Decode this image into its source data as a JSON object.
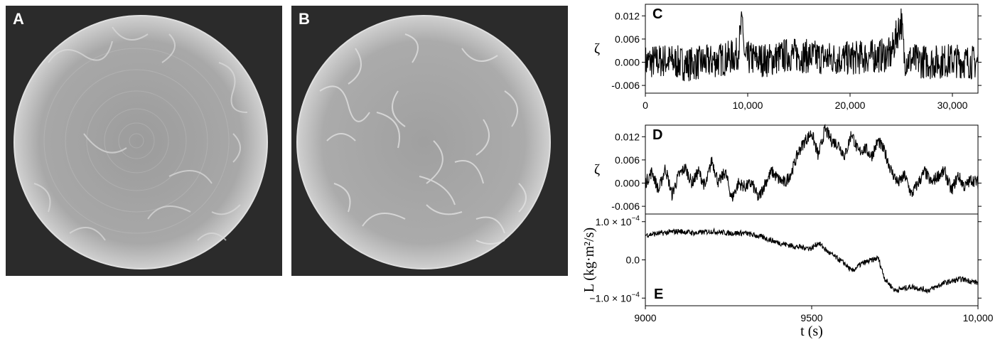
{
  "images": {
    "A": {
      "label": "A"
    },
    "B": {
      "label": "B"
    }
  },
  "chart_data": [
    {
      "panel": "C",
      "type": "line",
      "ylabel": "ζ",
      "xlabel": "",
      "xlim": [
        0,
        32500
      ],
      "ylim": [
        -0.008,
        0.015
      ],
      "xticks": [
        0,
        10000,
        20000,
        30000
      ],
      "xtick_labels": [
        "0",
        "10,000",
        "20,000",
        "30,000"
      ],
      "yticks": [
        -0.006,
        0.0,
        0.006,
        0.012
      ],
      "ytick_labels": [
        "-0.006",
        "0.000",
        "0.006",
        "0.012"
      ],
      "series": [
        {
          "x": [
            0,
            2000,
            4000,
            6000,
            8000,
            9000,
            9500,
            9700,
            10000,
            12000,
            14000,
            16000,
            18000,
            20000,
            22000,
            24000,
            25000,
            25300,
            26000,
            28000,
            30000,
            32000
          ],
          "y": [
            0.0,
            0.0005,
            -0.0005,
            0.0,
            0.001,
            0.002,
            0.011,
            0.0,
            0.001,
            0.0005,
            0.002,
            0.0015,
            0.001,
            0.001,
            0.0015,
            0.002,
            0.011,
            0.001,
            0.0005,
            0.0,
            0.0005,
            0.0
          ],
          "amplitude": 0.0045
        }
      ]
    },
    {
      "panel": "D",
      "type": "line",
      "ylabel": "ζ",
      "xlabel": "",
      "xlim": [
        9000,
        10000
      ],
      "ylim": [
        -0.008,
        0.015
      ],
      "yticks": [
        -0.006,
        0.0,
        0.006,
        0.012
      ],
      "ytick_labels": [
        "-0.006",
        "0.000",
        "0.006",
        "0.012"
      ],
      "series": [
        {
          "x": [
            9000,
            9020,
            9040,
            9060,
            9080,
            9100,
            9120,
            9140,
            9160,
            9180,
            9200,
            9220,
            9240,
            9260,
            9280,
            9300,
            9320,
            9340,
            9360,
            9380,
            9400,
            9420,
            9440,
            9460,
            9480,
            9500,
            9520,
            9540,
            9560,
            9580,
            9600,
            9620,
            9640,
            9660,
            9680,
            9700,
            9720,
            9740,
            9760,
            9780,
            9800,
            9820,
            9840,
            9860,
            9880,
            9900,
            9920,
            9940,
            9960,
            9980,
            10000
          ],
          "y": [
            0.0,
            0.003,
            -0.002,
            0.004,
            -0.003,
            0.002,
            0.004,
            0.0,
            0.003,
            -0.001,
            0.006,
            0.0,
            0.003,
            -0.004,
            0.0,
            -0.001,
            0.0,
            -0.004,
            0.0,
            0.003,
            0.001,
            0.0,
            0.003,
            0.008,
            0.011,
            0.013,
            0.007,
            0.014,
            0.011,
            0.01,
            0.007,
            0.013,
            0.008,
            0.009,
            0.007,
            0.011,
            0.008,
            0.003,
            0.0,
            0.002,
            -0.003,
            0.0,
            0.003,
            0.0,
            0.002,
            0.003,
            -0.002,
            0.002,
            -0.001,
            0.001,
            0.0
          ],
          "amplitude": 0.0018
        }
      ]
    },
    {
      "panel": "E",
      "type": "line",
      "ylabel": "L (kg·m²/s)",
      "xlabel": "t (s)",
      "xlim": [
        9000,
        10000
      ],
      "ylim": [
        -0.00012,
        0.00012
      ],
      "xticks": [
        9000,
        9500,
        10000
      ],
      "xtick_labels": [
        "9000",
        "9500",
        "10,000"
      ],
      "yticks": [
        0.0001,
        0.0,
        -0.0001
      ],
      "ytick_labels": [
        "1.0 × 10",
        "0.0",
        "−1.0 × 10"
      ],
      "ytick_exponents": [
        "−4",
        "",
        "−4"
      ],
      "series": [
        {
          "x": [
            9000,
            9050,
            9100,
            9150,
            9200,
            9250,
            9300,
            9350,
            9400,
            9450,
            9500,
            9520,
            9550,
            9600,
            9620,
            9650,
            9700,
            9720,
            9750,
            9800,
            9850,
            9900,
            9950,
            10000
          ],
          "y": [
            6.5e-05,
            7e-05,
            7.5e-05,
            7e-05,
            7.5e-05,
            7e-05,
            7e-05,
            6e-05,
            4.5e-05,
            3.5e-05,
            3e-05,
            4.5e-05,
            2e-05,
            -1e-05,
            -3e-05,
            -1e-05,
            5e-06,
            -5e-05,
            -8e-05,
            -7e-05,
            -8e-05,
            -6e-05,
            -5e-05,
            -6e-05
          ],
          "amplitude": 8e-06
        }
      ]
    }
  ]
}
